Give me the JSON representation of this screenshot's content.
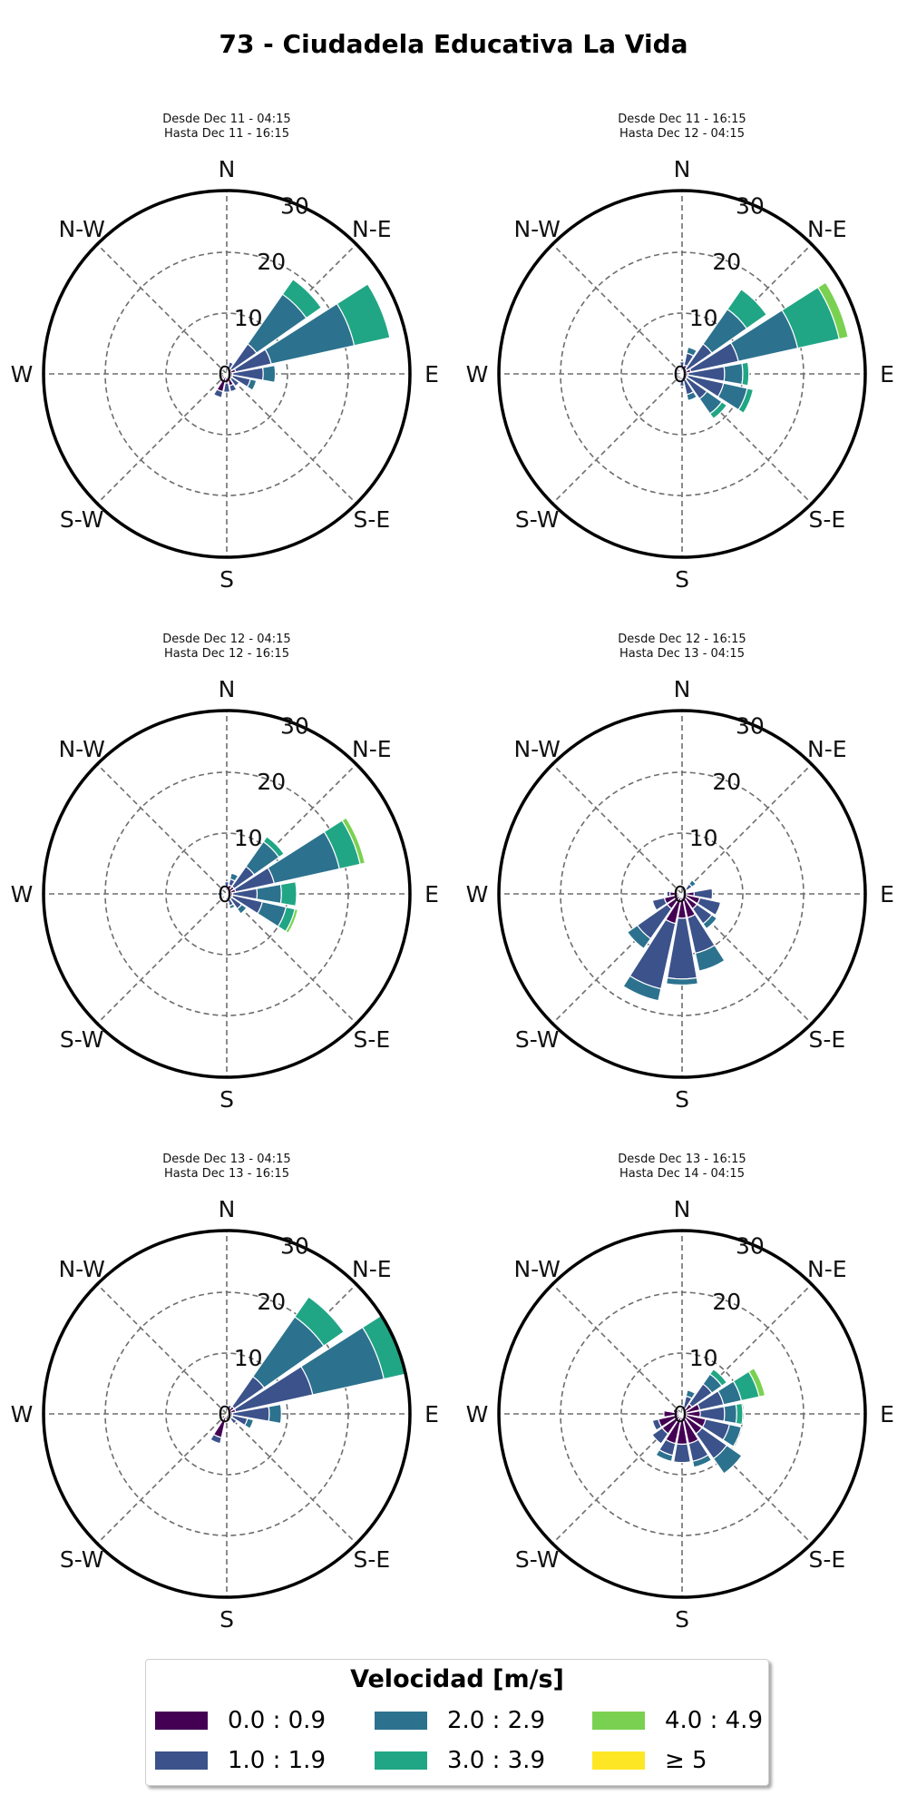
{
  "title": "73 - Ciudadela Educativa La Vida",
  "colors": {
    "bins": [
      "#440154",
      "#3b528b",
      "#2c728e",
      "#21a685",
      "#7ad151",
      "#fde725"
    ],
    "grid": "#6e6e6e",
    "outline": "#000000"
  },
  "legend": {
    "title": "Velocidad [m/s]",
    "items": [
      {
        "label": "0.0 : 0.9"
      },
      {
        "label": "1.0 : 1.9"
      },
      {
        "label": "2.0 : 2.9"
      },
      {
        "label": "3.0 : 3.9"
      },
      {
        "label": "4.0 : 4.9"
      },
      {
        "label": "≥ 5"
      }
    ]
  },
  "chart_data": [
    {
      "type": "windrose",
      "subtitle_line1": "Desde Dec 11 - 04:15",
      "subtitle_line2": "Hasta Dec 11 - 16:15",
      "direction_labels": [
        "N",
        "N-E",
        "E",
        "S-E",
        "S",
        "S-W",
        "W",
        "N-W"
      ],
      "radial_ticks": [
        "0",
        "10",
        "20",
        "30"
      ],
      "r_max": 30,
      "bins": [
        "0.0 : 0.9",
        "1.0 : 1.9",
        "2.0 : 2.9",
        "3.0 : 3.9",
        "4.0 : 4.9",
        "≥ 5"
      ],
      "sectors": [
        {
          "dir": 22.5,
          "values": [
            0.5,
            1.5,
            0,
            0,
            0,
            0
          ]
        },
        {
          "dir": 45,
          "values": [
            1,
            5,
            10,
            3,
            0,
            0
          ]
        },
        {
          "dir": 67.5,
          "values": [
            1.5,
            6,
            14,
            6,
            0,
            0
          ]
        },
        {
          "dir": 90,
          "values": [
            1,
            5,
            2,
            0,
            0,
            0
          ]
        },
        {
          "dir": 112.5,
          "values": [
            1,
            3,
            1,
            0,
            0,
            0
          ]
        },
        {
          "dir": 135,
          "values": [
            1,
            1.5,
            0,
            0,
            0,
            0
          ]
        },
        {
          "dir": 157.5,
          "values": [
            2,
            1,
            0,
            0,
            0,
            0
          ]
        },
        {
          "dir": 180,
          "values": [
            1.5,
            1.5,
            0,
            0,
            0,
            0
          ]
        },
        {
          "dir": 202.5,
          "values": [
            3,
            1,
            0,
            0,
            0,
            0
          ]
        },
        {
          "dir": 225,
          "values": [
            1,
            0,
            0,
            0,
            0,
            0
          ]
        },
        {
          "dir": 247.5,
          "values": [
            1,
            0,
            0,
            0,
            0,
            0
          ]
        },
        {
          "dir": 270,
          "values": [
            0.5,
            0,
            0,
            0,
            0,
            0
          ]
        }
      ]
    },
    {
      "type": "windrose",
      "subtitle_line1": "Desde Dec 11 - 16:15",
      "subtitle_line2": "Hasta Dec 12 - 04:15",
      "direction_labels": [
        "N",
        "N-E",
        "E",
        "S-E",
        "S",
        "S-W",
        "W",
        "N-W"
      ],
      "radial_ticks": [
        "0",
        "10",
        "20",
        "30"
      ],
      "r_max": 30,
      "bins": [
        "0.0 : 0.9",
        "1.0 : 1.9",
        "2.0 : 2.9",
        "3.0 : 3.9",
        "4.0 : 4.9",
        "≥ 5"
      ],
      "sectors": [
        {
          "dir": 0,
          "values": [
            1,
            1,
            0,
            0,
            0,
            0
          ]
        },
        {
          "dir": 22.5,
          "values": [
            1.5,
            2,
            1,
            0,
            0,
            0
          ]
        },
        {
          "dir": 45,
          "values": [
            1,
            5,
            7,
            4,
            0,
            0
          ]
        },
        {
          "dir": 67.5,
          "values": [
            1.5,
            8,
            10,
            7,
            1.5,
            0
          ]
        },
        {
          "dir": 90,
          "values": [
            1,
            6,
            3,
            1,
            0,
            0
          ]
        },
        {
          "dir": 112.5,
          "values": [
            1,
            6,
            4,
            1,
            0,
            0
          ]
        },
        {
          "dir": 135,
          "values": [
            1,
            4,
            3,
            1,
            0,
            0
          ]
        },
        {
          "dir": 157.5,
          "values": [
            1,
            2.5,
            1,
            0,
            0,
            0
          ]
        },
        {
          "dir": 180,
          "values": [
            1,
            1,
            0,
            0,
            0,
            0
          ]
        },
        {
          "dir": 202.5,
          "values": [
            1,
            0.5,
            0,
            0,
            0,
            0
          ]
        },
        {
          "dir": 247.5,
          "values": [
            0.5,
            0.5,
            0,
            0,
            0,
            0
          ]
        },
        {
          "dir": 315,
          "values": [
            1,
            0.5,
            0,
            0,
            0,
            0
          ]
        }
      ]
    },
    {
      "type": "windrose",
      "subtitle_line1": "Desde Dec 12 - 04:15",
      "subtitle_line2": "Hasta Dec 12 - 16:15",
      "direction_labels": [
        "N",
        "N-E",
        "E",
        "S-E",
        "S",
        "S-W",
        "W",
        "N-W"
      ],
      "radial_ticks": [
        "0",
        "10",
        "20",
        "30"
      ],
      "r_max": 30,
      "bins": [
        "0.0 : 0.9",
        "1.0 : 1.9",
        "2.0 : 2.9",
        "3.0 : 3.9",
        "4.0 : 4.9",
        "≥ 5"
      ],
      "sectors": [
        {
          "dir": 0,
          "values": [
            1,
            1,
            0,
            0,
            0,
            0
          ]
        },
        {
          "dir": 22.5,
          "values": [
            1.5,
            1,
            1,
            0,
            0,
            0
          ]
        },
        {
          "dir": 45,
          "values": [
            1.5,
            4,
            5,
            1,
            0,
            0
          ]
        },
        {
          "dir": 67.5,
          "values": [
            1.5,
            6.5,
            11,
            3.5,
            0.8,
            0
          ]
        },
        {
          "dir": 90,
          "values": [
            1,
            4,
            4,
            2.5,
            0,
            0
          ]
        },
        {
          "dir": 112.5,
          "values": [
            1,
            5,
            4,
            1.5,
            0.5,
            0
          ]
        },
        {
          "dir": 135,
          "values": [
            1,
            2,
            1,
            0,
            0,
            0
          ]
        },
        {
          "dir": 157.5,
          "values": [
            1,
            1,
            0.5,
            0,
            0,
            0
          ]
        },
        {
          "dir": 180,
          "values": [
            0.5,
            0.5,
            0,
            0,
            0,
            0
          ]
        },
        {
          "dir": 225,
          "values": [
            0.5,
            0.5,
            0.5,
            0,
            0,
            0
          ]
        },
        {
          "dir": 270,
          "values": [
            0.5,
            0.5,
            0.5,
            0,
            0,
            0
          ]
        }
      ]
    },
    {
      "type": "windrose",
      "subtitle_line1": "Desde Dec 12 - 16:15",
      "subtitle_line2": "Hasta Dec 13 - 04:15",
      "direction_labels": [
        "N",
        "N-E",
        "E",
        "S-E",
        "S",
        "S-W",
        "W",
        "N-W"
      ],
      "radial_ticks": [
        "0",
        "10",
        "20",
        "30"
      ],
      "r_max": 30,
      "bins": [
        "0.0 : 0.9",
        "1.0 : 1.9",
        "2.0 : 2.9",
        "3.0 : 3.9",
        "4.0 : 4.9",
        "≥ 5"
      ],
      "sectors": [
        {
          "dir": 45,
          "values": [
            1,
            1,
            0.8,
            0,
            0,
            0
          ]
        },
        {
          "dir": 90,
          "values": [
            2,
            3,
            0,
            0,
            0,
            0
          ]
        },
        {
          "dir": 112.5,
          "values": [
            3,
            3.5,
            0,
            0,
            0,
            0
          ]
        },
        {
          "dir": 135,
          "values": [
            3,
            3,
            1,
            0,
            0,
            0
          ]
        },
        {
          "dir": 157.5,
          "values": [
            4,
            6,
            3,
            0,
            0,
            0
          ]
        },
        {
          "dir": 180,
          "values": [
            4,
            10,
            1,
            0,
            0,
            0
          ]
        },
        {
          "dir": 202.5,
          "values": [
            5,
            11,
            2,
            0,
            0,
            0
          ]
        },
        {
          "dir": 225,
          "values": [
            3,
            6,
            2,
            0,
            0,
            0
          ]
        },
        {
          "dir": 247.5,
          "values": [
            3,
            2,
            0,
            0,
            0,
            0
          ]
        },
        {
          "dir": 270,
          "values": [
            2,
            0.5,
            0,
            0,
            0,
            0
          ]
        }
      ]
    },
    {
      "type": "windrose",
      "subtitle_line1": "Desde Dec 13 - 04:15",
      "subtitle_line2": "Hasta Dec 13 - 16:15",
      "direction_labels": [
        "N",
        "N-E",
        "E",
        "S-E",
        "S",
        "S-W",
        "W",
        "N-W"
      ],
      "radial_ticks": [
        "0",
        "10",
        "20",
        "30"
      ],
      "r_max": 30,
      "bins": [
        "0.0 : 0.9",
        "1.0 : 1.9",
        "2.0 : 2.9",
        "3.0 : 3.9",
        "4.0 : 4.9",
        "≥ 5"
      ],
      "sectors": [
        {
          "dir": 22.5,
          "values": [
            0.5,
            1,
            0,
            0,
            0,
            0
          ]
        },
        {
          "dir": 45,
          "values": [
            1.5,
            6,
            12,
            4,
            0,
            0
          ]
        },
        {
          "dir": 67.5,
          "values": [
            1.5,
            13,
            12,
            4,
            0,
            0
          ]
        },
        {
          "dir": 90,
          "values": [
            1,
            6,
            2,
            0,
            0,
            0
          ]
        },
        {
          "dir": 112.5,
          "values": [
            1,
            2.5,
            1,
            0,
            0,
            0
          ]
        },
        {
          "dir": 135,
          "values": [
            1,
            1,
            0,
            0,
            0,
            0
          ]
        },
        {
          "dir": 202.5,
          "values": [
            4,
            1,
            0,
            0,
            0,
            0
          ]
        },
        {
          "dir": 225,
          "values": [
            0.5,
            0,
            0,
            0,
            0,
            0
          ]
        }
      ]
    },
    {
      "type": "windrose",
      "subtitle_line1": "Desde Dec 13 - 16:15",
      "subtitle_line2": "Hasta Dec 14 - 04:15",
      "direction_labels": [
        "N",
        "N-E",
        "E",
        "S-E",
        "S",
        "S-W",
        "W",
        "N-W"
      ],
      "radial_ticks": [
        "0",
        "10",
        "20",
        "30"
      ],
      "r_max": 30,
      "bins": [
        "0.0 : 0.9",
        "1.0 : 1.9",
        "2.0 : 2.9",
        "3.0 : 3.9",
        "4.0 : 4.9",
        "≥ 5"
      ],
      "sectors": [
        {
          "dir": 22.5,
          "values": [
            1,
            2,
            1,
            0,
            0,
            0
          ]
        },
        {
          "dir": 45,
          "values": [
            2,
            4,
            2,
            1,
            0,
            0
          ]
        },
        {
          "dir": 67.5,
          "values": [
            3,
            4,
            3,
            3,
            1,
            0
          ]
        },
        {
          "dir": 90,
          "values": [
            3,
            4,
            2,
            1,
            0,
            0
          ]
        },
        {
          "dir": 112.5,
          "values": [
            4,
            4,
            2,
            0,
            0,
            0
          ]
        },
        {
          "dir": 135,
          "values": [
            4,
            5,
            3,
            0,
            0,
            0
          ]
        },
        {
          "dir": 157.5,
          "values": [
            5,
            3,
            1,
            0,
            0,
            0
          ]
        },
        {
          "dir": 180,
          "values": [
            5,
            3,
            0,
            0,
            0,
            0
          ]
        },
        {
          "dir": 202.5,
          "values": [
            5,
            2,
            1,
            0,
            0,
            0
          ]
        },
        {
          "dir": 225,
          "values": [
            4,
            2,
            0,
            0,
            0,
            0
          ]
        },
        {
          "dir": 247.5,
          "values": [
            4,
            1,
            0,
            0,
            0,
            0
          ]
        },
        {
          "dir": 270,
          "values": [
            3,
            0,
            0,
            0,
            0,
            0
          ]
        },
        {
          "dir": 292.5,
          "values": [
            1.5,
            0,
            0,
            0,
            0,
            0
          ]
        }
      ]
    }
  ]
}
